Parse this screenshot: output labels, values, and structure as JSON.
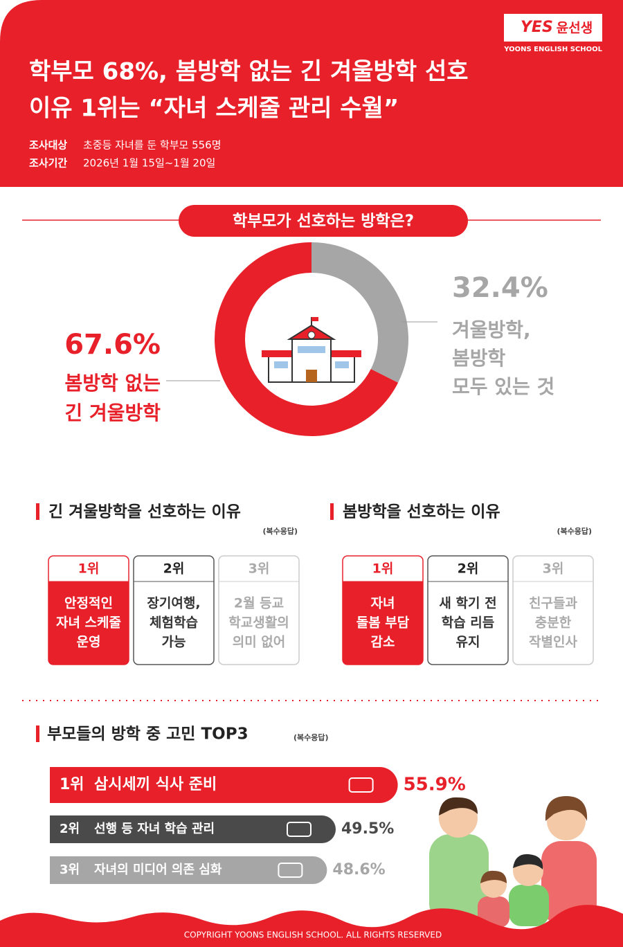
{
  "brand": {
    "name": "윤선생",
    "sub": "YOONS ENGLISH SCHOOL"
  },
  "header": {
    "title_lines": [
      "학부모 68%, 봄방학 없는 긴 겨울방학 선호",
      "이유 1위는 “자녀 스케줄 관리 수월”"
    ],
    "meta": [
      {
        "label": "조사대상",
        "text": "초중등 자녀를 둔 학부모 556명"
      },
      {
        "label": "조사기간",
        "text": "2026년 1월 15일~1월 20일"
      }
    ]
  },
  "donut": {
    "title": "학부모가 선호하는 방학은?",
    "type": "pie",
    "slices": [
      {
        "value": 67.6,
        "value_label": "67.6%",
        "label_lines": [
          "봄방학 없는",
          "긴 겨울방학"
        ],
        "color": "#e8202a"
      },
      {
        "value": 32.4,
        "value_label": "32.4%",
        "label_lines": [
          "겨울방학,",
          "봄방학",
          "모두 있는 것"
        ],
        "color": "#a6a6a6"
      }
    ]
  },
  "reasons": [
    {
      "title": "긴 겨울방학을 선호하는 이유",
      "note": "(복수응답)",
      "items": [
        {
          "rank": "1위",
          "lines": [
            "안정적인",
            "자녀 스케줄",
            "운영"
          ]
        },
        {
          "rank": "2위",
          "lines": [
            "장기여행,",
            "체험학습",
            "가능"
          ]
        },
        {
          "rank": "3위",
          "lines": [
            "2월 등교",
            "학교생활의",
            "의미 없어"
          ]
        }
      ]
    },
    {
      "title": "봄방학을 선호하는 이유",
      "note": "(복수응답)",
      "items": [
        {
          "rank": "1위",
          "lines": [
            "자녀",
            "돌봄 부담",
            "감소"
          ]
        },
        {
          "rank": "2위",
          "lines": [
            "새 학기 전",
            "학습 리듬",
            "유지"
          ]
        },
        {
          "rank": "3위",
          "lines": [
            "친구들과",
            "충분한",
            "작별인사"
          ]
        }
      ]
    }
  ],
  "top3": {
    "title": "부모들의 방학 중 고민 TOP3",
    "note": "(복수응답)",
    "items": [
      {
        "rank": "1위",
        "text": "삼시세끼 식사 준비",
        "value": 55.9,
        "value_label": "55.9%"
      },
      {
        "rank": "2위",
        "text": "선행 등 자녀 학습 관리",
        "value": 49.5,
        "value_label": "49.5%"
      },
      {
        "rank": "3위",
        "text": "자녀의 미디어 의존 심화",
        "value": 48.6,
        "value_label": "48.6%"
      }
    ]
  },
  "footer": "COPYRIGHT YOONS ENGLISH SCHOOL. ALL RIGHTS RESERVED"
}
